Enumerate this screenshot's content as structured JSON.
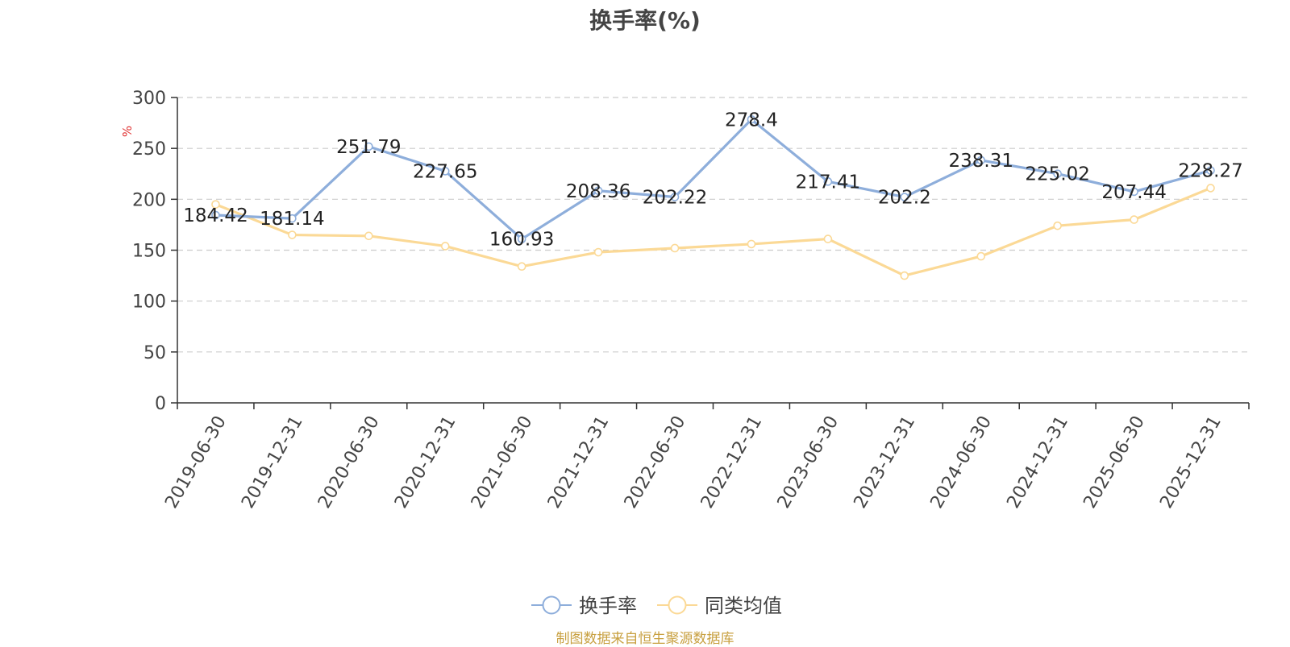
{
  "title": "换手率(%)",
  "source_note": "制图数据来自恒生聚源数据库",
  "colors": {
    "series_1": "#8eaedb",
    "series_2": "#fbd996",
    "axis": "#333333",
    "grid": "#cccccc",
    "unit": "#e03030",
    "source": "#c8a040"
  },
  "chart_data": {
    "type": "line",
    "title": "换手率(%)",
    "ylabel": "%",
    "xlabel": "",
    "ylim": [
      0,
      300
    ],
    "yticks": [
      0,
      50,
      100,
      150,
      200,
      250,
      300
    ],
    "grid": true,
    "legend_position": "bottom-center",
    "categories": [
      "2019-06-30",
      "2019-12-31",
      "2020-06-30",
      "2020-12-31",
      "2021-06-30",
      "2021-12-31",
      "2022-06-30",
      "2022-12-31",
      "2023-06-30",
      "2023-12-31",
      "2024-06-30",
      "2024-12-31",
      "2025-06-30",
      "2025-12-31"
    ],
    "series": [
      {
        "name": "换手率",
        "values": [
          184.42,
          181.14,
          251.79,
          227.65,
          160.93,
          208.36,
          202.22,
          278.4,
          217.41,
          202.2,
          238.31,
          225.02,
          207.44,
          228.27
        ],
        "labels": [
          "184.42",
          "181.14",
          "251.79",
          "227.65",
          "160.93",
          "208.36",
          "202.22",
          "278.4",
          "217.41",
          "202.2",
          "238.31",
          "225.02",
          "207.44",
          "228.27"
        ]
      },
      {
        "name": "同类均值",
        "values": [
          195,
          165,
          164,
          154,
          134,
          148,
          152,
          156,
          161,
          125,
          144,
          174,
          180,
          211
        ]
      }
    ]
  }
}
